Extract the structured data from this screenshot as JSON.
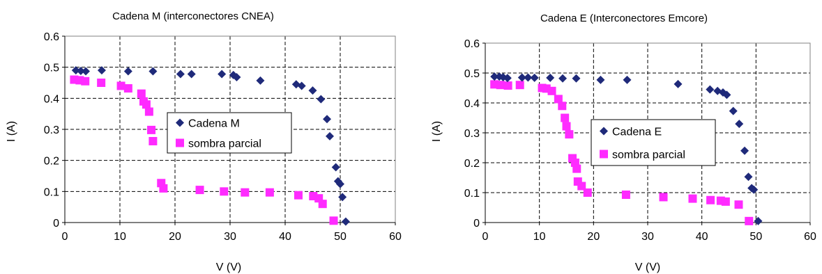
{
  "chart_data": [
    {
      "type": "scatter",
      "title": "Cadena M (interconectores CNEA)",
      "xlabel": "V (V)",
      "ylabel": "I (A)",
      "xlim": [
        0,
        60
      ],
      "ylim": [
        0,
        0.6
      ],
      "xticks": [
        "0",
        "10",
        "20",
        "30",
        "40",
        "50",
        "60"
      ],
      "yticks": [
        "0",
        "0.1",
        "0.2",
        "0.3",
        "0.4",
        "0.5",
        "0.6"
      ],
      "grid": "dashed",
      "legend_position": "center",
      "series": [
        {
          "name": "Cadena M",
          "marker": "diamond",
          "color": "#1f2a7a",
          "points": [
            [
              2,
              0.49
            ],
            [
              2.9,
              0.488
            ],
            [
              3.8,
              0.487
            ],
            [
              6.7,
              0.49
            ],
            [
              11.5,
              0.487
            ],
            [
              16,
              0.487
            ],
            [
              21,
              0.478
            ],
            [
              23,
              0.478
            ],
            [
              28.5,
              0.478
            ],
            [
              30.6,
              0.475
            ],
            [
              31.2,
              0.468
            ],
            [
              35.5,
              0.457
            ],
            [
              42,
              0.445
            ],
            [
              43,
              0.44
            ],
            [
              45,
              0.425
            ],
            [
              46.5,
              0.397
            ],
            [
              47.6,
              0.333
            ],
            [
              48.1,
              0.278
            ],
            [
              49.2,
              0.178
            ],
            [
              49.6,
              0.133
            ],
            [
              50,
              0.124
            ],
            [
              50.4,
              0.082
            ],
            [
              51,
              0.003
            ]
          ]
        },
        {
          "name": "sombra parcial",
          "marker": "square",
          "color": "#ff2bff",
          "points": [
            [
              1.7,
              0.46
            ],
            [
              2.7,
              0.458
            ],
            [
              3.7,
              0.455
            ],
            [
              6.6,
              0.45
            ],
            [
              10.2,
              0.44
            ],
            [
              11.5,
              0.432
            ],
            [
              13.9,
              0.415
            ],
            [
              14.3,
              0.39
            ],
            [
              14.8,
              0.38
            ],
            [
              15.3,
              0.357
            ],
            [
              15.7,
              0.298
            ],
            [
              16,
              0.262
            ],
            [
              17.5,
              0.127
            ],
            [
              17.9,
              0.11
            ],
            [
              24.5,
              0.105
            ],
            [
              28.9,
              0.1
            ],
            [
              32.7,
              0.097
            ],
            [
              37.2,
              0.097
            ],
            [
              42.4,
              0.088
            ],
            [
              45.1,
              0.085
            ],
            [
              46.1,
              0.078
            ],
            [
              46.8,
              0.06
            ],
            [
              48.8,
              0.006
            ]
          ]
        }
      ]
    },
    {
      "type": "scatter",
      "title": "Cadena E (Interconectores Emcore)",
      "xlabel": "V (V)",
      "ylabel": "I (A)",
      "xlim": [
        0,
        60
      ],
      "ylim": [
        0,
        0.6
      ],
      "xticks": [
        "0",
        "10",
        "20",
        "30",
        "40",
        "50",
        "60"
      ],
      "yticks": [
        "0",
        "0.1",
        "0.2",
        "0.3",
        "0.4",
        "0.5",
        "0.6"
      ],
      "grid": "dashed",
      "legend_position": "center-right",
      "series": [
        {
          "name": "Cadena E",
          "marker": "diamond",
          "color": "#1f2a7a",
          "points": [
            [
              1.7,
              0.488
            ],
            [
              2.6,
              0.488
            ],
            [
              3.3,
              0.486
            ],
            [
              4.1,
              0.483
            ],
            [
              6.8,
              0.485
            ],
            [
              7.9,
              0.485
            ],
            [
              9.1,
              0.484
            ],
            [
              12,
              0.484
            ],
            [
              14.3,
              0.482
            ],
            [
              16.8,
              0.482
            ],
            [
              21.3,
              0.477
            ],
            [
              26.2,
              0.477
            ],
            [
              35.6,
              0.463
            ],
            [
              41.5,
              0.445
            ],
            [
              42.9,
              0.44
            ],
            [
              43.9,
              0.435
            ],
            [
              44.6,
              0.427
            ],
            [
              45.8,
              0.373
            ],
            [
              46.9,
              0.33
            ],
            [
              47.9,
              0.24
            ],
            [
              48.6,
              0.153
            ],
            [
              49.2,
              0.115
            ],
            [
              49.6,
              0.11
            ],
            [
              50.4,
              0.005
            ]
          ]
        },
        {
          "name": "sombra parcial",
          "marker": "square",
          "color": "#ff2bff",
          "points": [
            [
              1.7,
              0.462
            ],
            [
              2.8,
              0.46
            ],
            [
              4.2,
              0.458
            ],
            [
              6.4,
              0.46
            ],
            [
              10.5,
              0.45
            ],
            [
              11.3,
              0.448
            ],
            [
              12.3,
              0.44
            ],
            [
              13.5,
              0.413
            ],
            [
              14.2,
              0.39
            ],
            [
              14.7,
              0.35
            ],
            [
              15,
              0.322
            ],
            [
              15.5,
              0.295
            ],
            [
              16.1,
              0.215
            ],
            [
              16.6,
              0.2
            ],
            [
              16.9,
              0.18
            ],
            [
              17.1,
              0.137
            ],
            [
              17.8,
              0.122
            ],
            [
              18.9,
              0.1
            ],
            [
              26,
              0.093
            ],
            [
              32.9,
              0.085
            ],
            [
              38.3,
              0.08
            ],
            [
              41.6,
              0.075
            ],
            [
              43.5,
              0.073
            ],
            [
              44.4,
              0.07
            ],
            [
              46.8,
              0.06
            ],
            [
              48.7,
              0.005
            ]
          ]
        }
      ]
    }
  ]
}
